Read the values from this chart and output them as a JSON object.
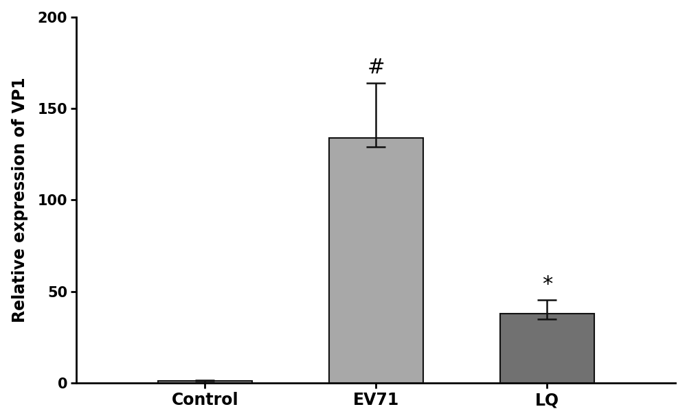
{
  "categories": [
    "Control",
    "EV71",
    "LQ"
  ],
  "values": [
    1.0,
    134.0,
    38.0
  ],
  "bar_colors": [
    "#a8a8a8",
    "#a8a8a8",
    "#717171"
  ],
  "error_upper": [
    0.5,
    30.0,
    7.5
  ],
  "error_lower": [
    0.5,
    5.0,
    3.0
  ],
  "annotations": [
    "",
    "#",
    "*"
  ],
  "ylabel": "Relative expression of VP1",
  "ylim": [
    0,
    200
  ],
  "yticks": [
    0,
    50,
    100,
    150,
    200
  ],
  "bar_width": 0.55,
  "title": "",
  "background_color": "#ffffff",
  "edge_color": "#111111",
  "error_color": "#111111",
  "annotation_fontsize": 22,
  "ylabel_fontsize": 17,
  "tick_fontsize": 15,
  "xlabel_fontsize": 17
}
